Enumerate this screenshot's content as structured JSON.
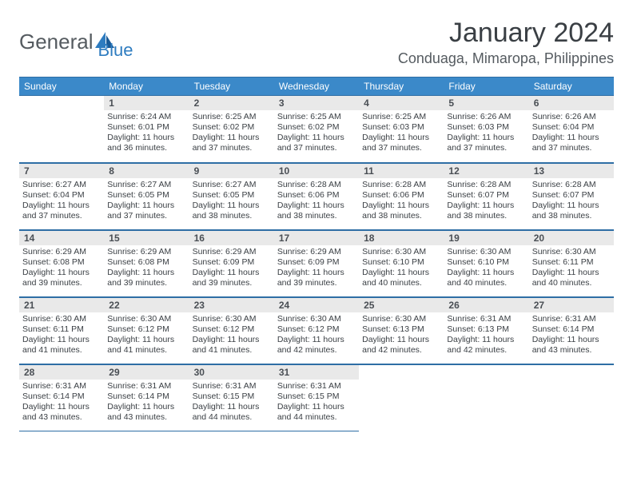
{
  "brand": {
    "name1": "General",
    "name2": "Blue"
  },
  "title": "January 2024",
  "location": "Conduaga, Mimaropa, Philippines",
  "colors": {
    "header_bg": "#3b89c9",
    "header_fg": "#ffffff",
    "daynum_bg": "#e9e9e9",
    "border": "#2e6ea5",
    "text": "#3a3f44"
  },
  "dow": [
    "Sunday",
    "Monday",
    "Tuesday",
    "Wednesday",
    "Thursday",
    "Friday",
    "Saturday"
  ],
  "weeks": [
    [
      null,
      {
        "n": "1",
        "sr": "6:24 AM",
        "ss": "6:01 PM",
        "dl": "11 hours and 36 minutes."
      },
      {
        "n": "2",
        "sr": "6:25 AM",
        "ss": "6:02 PM",
        "dl": "11 hours and 37 minutes."
      },
      {
        "n": "3",
        "sr": "6:25 AM",
        "ss": "6:02 PM",
        "dl": "11 hours and 37 minutes."
      },
      {
        "n": "4",
        "sr": "6:25 AM",
        "ss": "6:03 PM",
        "dl": "11 hours and 37 minutes."
      },
      {
        "n": "5",
        "sr": "6:26 AM",
        "ss": "6:03 PM",
        "dl": "11 hours and 37 minutes."
      },
      {
        "n": "6",
        "sr": "6:26 AM",
        "ss": "6:04 PM",
        "dl": "11 hours and 37 minutes."
      }
    ],
    [
      {
        "n": "7",
        "sr": "6:27 AM",
        "ss": "6:04 PM",
        "dl": "11 hours and 37 minutes."
      },
      {
        "n": "8",
        "sr": "6:27 AM",
        "ss": "6:05 PM",
        "dl": "11 hours and 37 minutes."
      },
      {
        "n": "9",
        "sr": "6:27 AM",
        "ss": "6:05 PM",
        "dl": "11 hours and 38 minutes."
      },
      {
        "n": "10",
        "sr": "6:28 AM",
        "ss": "6:06 PM",
        "dl": "11 hours and 38 minutes."
      },
      {
        "n": "11",
        "sr": "6:28 AM",
        "ss": "6:06 PM",
        "dl": "11 hours and 38 minutes."
      },
      {
        "n": "12",
        "sr": "6:28 AM",
        "ss": "6:07 PM",
        "dl": "11 hours and 38 minutes."
      },
      {
        "n": "13",
        "sr": "6:28 AM",
        "ss": "6:07 PM",
        "dl": "11 hours and 38 minutes."
      }
    ],
    [
      {
        "n": "14",
        "sr": "6:29 AM",
        "ss": "6:08 PM",
        "dl": "11 hours and 39 minutes."
      },
      {
        "n": "15",
        "sr": "6:29 AM",
        "ss": "6:08 PM",
        "dl": "11 hours and 39 minutes."
      },
      {
        "n": "16",
        "sr": "6:29 AM",
        "ss": "6:09 PM",
        "dl": "11 hours and 39 minutes."
      },
      {
        "n": "17",
        "sr": "6:29 AM",
        "ss": "6:09 PM",
        "dl": "11 hours and 39 minutes."
      },
      {
        "n": "18",
        "sr": "6:30 AM",
        "ss": "6:10 PM",
        "dl": "11 hours and 40 minutes."
      },
      {
        "n": "19",
        "sr": "6:30 AM",
        "ss": "6:10 PM",
        "dl": "11 hours and 40 minutes."
      },
      {
        "n": "20",
        "sr": "6:30 AM",
        "ss": "6:11 PM",
        "dl": "11 hours and 40 minutes."
      }
    ],
    [
      {
        "n": "21",
        "sr": "6:30 AM",
        "ss": "6:11 PM",
        "dl": "11 hours and 41 minutes."
      },
      {
        "n": "22",
        "sr": "6:30 AM",
        "ss": "6:12 PM",
        "dl": "11 hours and 41 minutes."
      },
      {
        "n": "23",
        "sr": "6:30 AM",
        "ss": "6:12 PM",
        "dl": "11 hours and 41 minutes."
      },
      {
        "n": "24",
        "sr": "6:30 AM",
        "ss": "6:12 PM",
        "dl": "11 hours and 42 minutes."
      },
      {
        "n": "25",
        "sr": "6:30 AM",
        "ss": "6:13 PM",
        "dl": "11 hours and 42 minutes."
      },
      {
        "n": "26",
        "sr": "6:31 AM",
        "ss": "6:13 PM",
        "dl": "11 hours and 42 minutes."
      },
      {
        "n": "27",
        "sr": "6:31 AM",
        "ss": "6:14 PM",
        "dl": "11 hours and 43 minutes."
      }
    ],
    [
      {
        "n": "28",
        "sr": "6:31 AM",
        "ss": "6:14 PM",
        "dl": "11 hours and 43 minutes."
      },
      {
        "n": "29",
        "sr": "6:31 AM",
        "ss": "6:14 PM",
        "dl": "11 hours and 43 minutes."
      },
      {
        "n": "30",
        "sr": "6:31 AM",
        "ss": "6:15 PM",
        "dl": "11 hours and 44 minutes."
      },
      {
        "n": "31",
        "sr": "6:31 AM",
        "ss": "6:15 PM",
        "dl": "11 hours and 44 minutes."
      },
      null,
      null,
      null
    ]
  ],
  "labels": {
    "sunrise": "Sunrise:",
    "sunset": "Sunset:",
    "daylight": "Daylight:"
  }
}
